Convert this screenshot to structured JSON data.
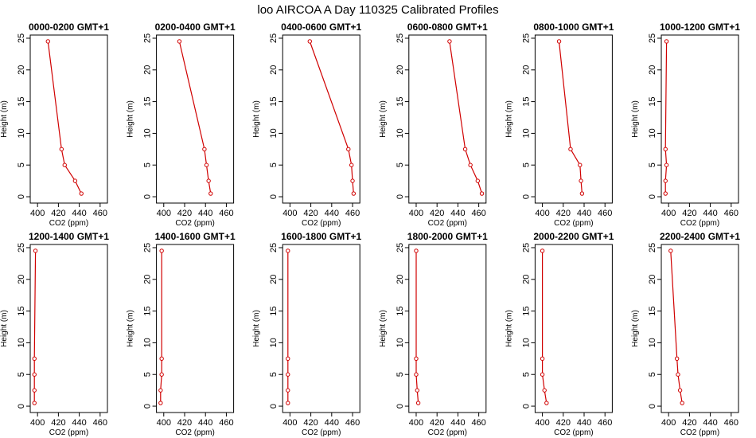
{
  "figure": {
    "title": "loo AIRCOA A  Day 110325  Calibrated Profiles"
  },
  "chart_data": {
    "type": "line",
    "xlabel": "CO2 (ppm)",
    "ylabel": "Height (m)",
    "xlim": [
      393,
      467
    ],
    "ylim": [
      -1,
      25.5
    ],
    "xticks": [
      400,
      420,
      440,
      460
    ],
    "yticks": [
      0,
      5,
      10,
      15,
      20,
      25
    ],
    "line_color": "#d00000",
    "heights": [
      24.5,
      7.5,
      5,
      2.5,
      0.5
    ],
    "panels": [
      {
        "title": "0000-0200 GMT+1",
        "x": [
          410,
          423,
          426,
          436,
          442
        ]
      },
      {
        "title": "0200-0400 GMT+1",
        "x": [
          415,
          439,
          441,
          443,
          445
        ]
      },
      {
        "title": "0400-0600 GMT+1",
        "x": [
          419,
          456,
          459,
          460,
          461
        ]
      },
      {
        "title": "0600-0800 GMT+1",
        "x": [
          432,
          447,
          452,
          459,
          463
        ]
      },
      {
        "title": "0800-1000 GMT+1",
        "x": [
          416,
          427,
          436,
          437,
          438
        ]
      },
      {
        "title": "1000-1200 GMT+1",
        "x": [
          398,
          397,
          398,
          397,
          397
        ]
      },
      {
        "title": "1200-1400 GMT+1",
        "x": [
          398,
          397,
          397,
          397,
          397
        ]
      },
      {
        "title": "1400-1600 GMT+1",
        "x": [
          398,
          398,
          398,
          397,
          397
        ]
      },
      {
        "title": "1600-1800 GMT+1",
        "x": [
          398,
          398,
          398,
          398,
          398
        ]
      },
      {
        "title": "1800-2000 GMT+1",
        "x": [
          400,
          400,
          400,
          401,
          402
        ]
      },
      {
        "title": "2000-2200 GMT+1",
        "x": [
          400,
          400,
          400,
          402,
          404
        ]
      },
      {
        "title": "2200-2400 GMT+1",
        "x": [
          402,
          408,
          409,
          411,
          413
        ]
      }
    ]
  }
}
